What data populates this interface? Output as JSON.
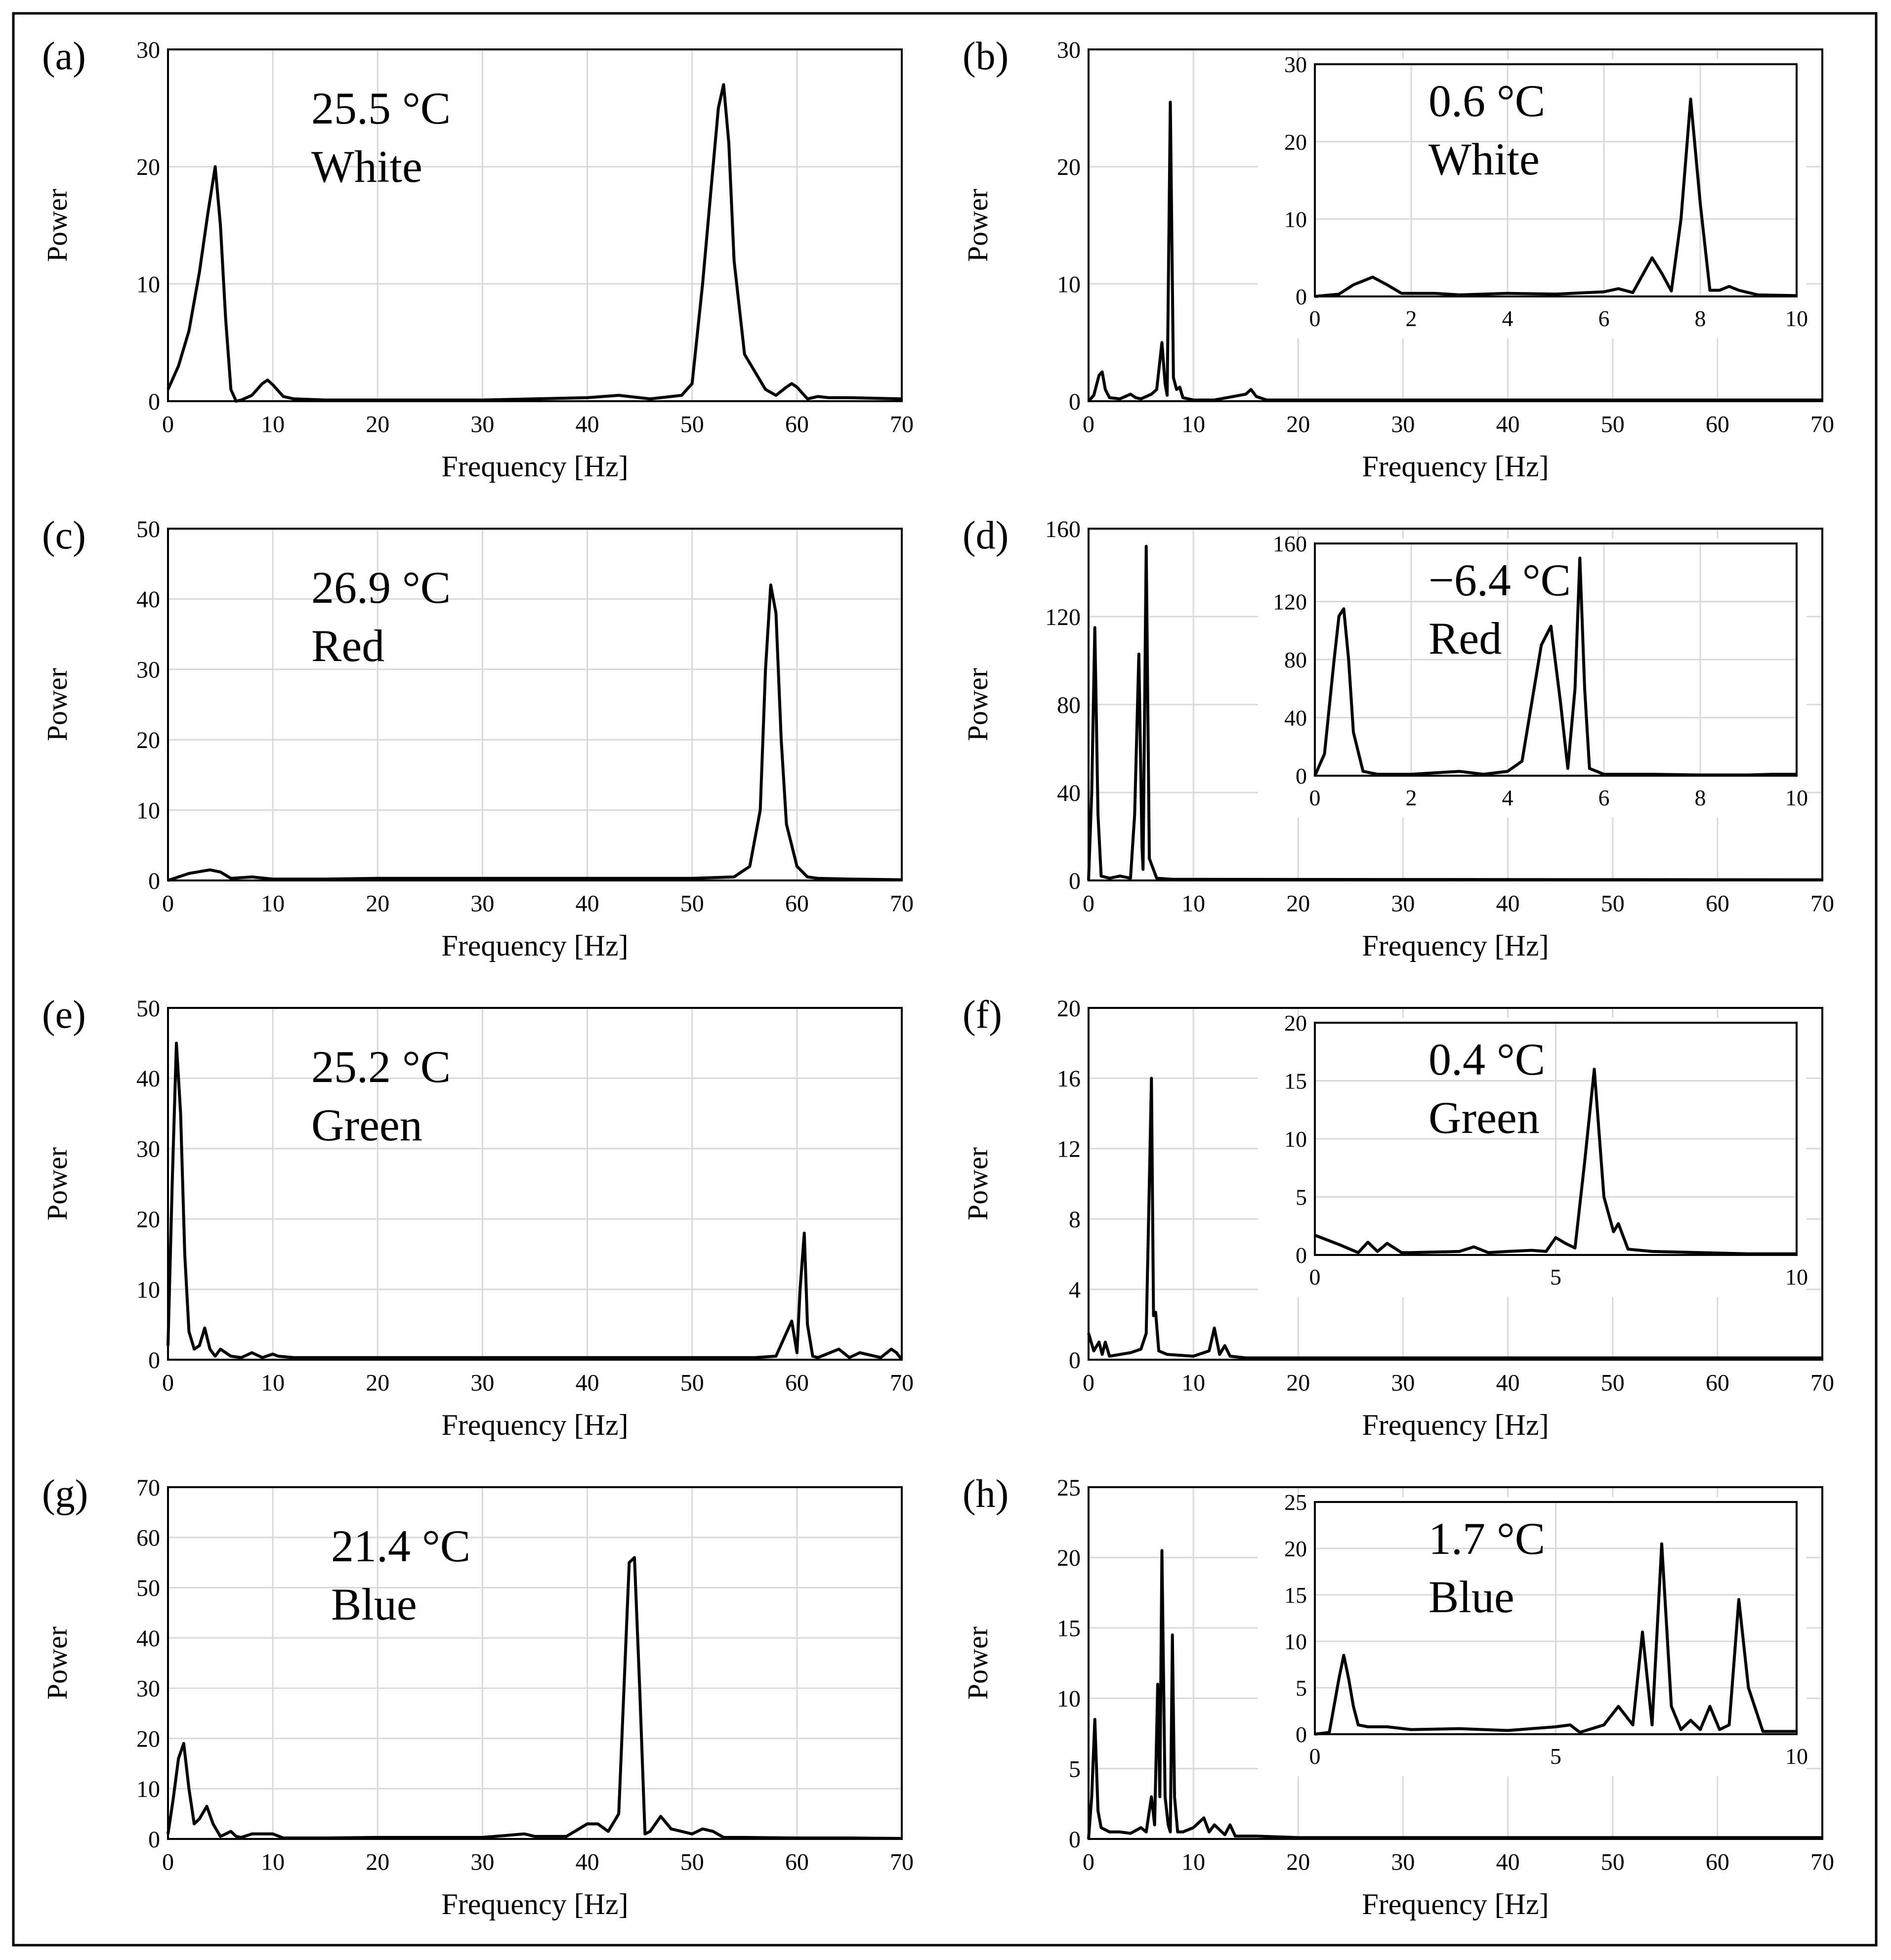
{
  "colors": {
    "line": "#000000",
    "grid": "#d9d9d9",
    "frame": "#000000",
    "background": "#ffffff"
  },
  "chart_data": [
    {
      "panel": "(a)",
      "type": "line",
      "xlabel": "Frequency [Hz]",
      "ylabel": "Power",
      "xlim": [
        0,
        70
      ],
      "ylim": [
        0,
        30
      ],
      "xticks": [
        0,
        10,
        20,
        30,
        40,
        50,
        60,
        70
      ],
      "yticks": [
        0,
        10,
        20,
        30
      ],
      "annotation": [
        "25.5 °C",
        "White"
      ],
      "x": [
        0,
        1,
        2,
        3,
        3.8,
        4.5,
        5,
        5.5,
        6,
        6.5,
        7,
        8,
        9,
        9.5,
        10,
        11,
        12,
        15,
        20,
        30,
        40,
        43,
        46,
        49,
        50,
        51,
        52,
        52.5,
        53,
        53.5,
        54,
        55,
        56,
        57,
        58,
        59,
        59.5,
        60,
        61,
        62,
        63,
        65,
        70
      ],
      "y": [
        1,
        3,
        6,
        11,
        16,
        20,
        15,
        7,
        1,
        0,
        0.1,
        0.5,
        1.5,
        1.8,
        1.4,
        0.4,
        0.2,
        0.1,
        0.1,
        0.1,
        0.3,
        0.5,
        0.2,
        0.5,
        1.5,
        10,
        20,
        25,
        27,
        22,
        12,
        4,
        2.5,
        1,
        0.5,
        1.2,
        1.5,
        1.2,
        0.2,
        0.4,
        0.3,
        0.3,
        0.2
      ]
    },
    {
      "panel": "(b)",
      "type": "line",
      "xlabel": "Frequency [Hz]",
      "ylabel": "Power",
      "xlim": [
        0,
        70
      ],
      "ylim": [
        0,
        30
      ],
      "xticks": [
        0,
        10,
        20,
        30,
        40,
        50,
        60,
        70
      ],
      "yticks": [
        0,
        10,
        20,
        30
      ],
      "annotation": [
        "0.6 °C",
        "White"
      ],
      "x": [
        0,
        0.5,
        1,
        1.3,
        1.6,
        2,
        3,
        4,
        4.5,
        5,
        6,
        6.5,
        7,
        7.3,
        7.5,
        7.8,
        8.1,
        8.4,
        8.7,
        9,
        10,
        12,
        15,
        15.5,
        16,
        17,
        20,
        70
      ],
      "y": [
        0,
        0.5,
        2.2,
        2.5,
        1,
        0.3,
        0.2,
        0.6,
        0.3,
        0.2,
        0.6,
        1,
        5,
        1.5,
        0.5,
        25.5,
        2,
        1,
        1.2,
        0.3,
        0.1,
        0.1,
        0.6,
        1,
        0.4,
        0.1,
        0.1,
        0.1
      ],
      "inset": {
        "xlim": [
          0,
          10
        ],
        "ylim": [
          0,
          30
        ],
        "xticks": [
          0,
          2,
          4,
          6,
          8,
          10
        ],
        "yticks": [
          0,
          10,
          20,
          30
        ],
        "x": [
          0,
          0.5,
          0.8,
          1.2,
          1.5,
          1.8,
          2.5,
          3,
          4,
          5,
          6,
          6.3,
          6.6,
          7,
          7.2,
          7.4,
          7.6,
          7.8,
          8,
          8.2,
          8.4,
          8.6,
          8.8,
          9.2,
          10
        ],
        "y": [
          0,
          0.3,
          1.5,
          2.5,
          1.5,
          0.4,
          0.4,
          0.2,
          0.4,
          0.3,
          0.6,
          1,
          0.5,
          5,
          3,
          0.7,
          10,
          25.5,
          12,
          0.8,
          0.8,
          1.3,
          0.8,
          0.2,
          0.1
        ]
      }
    },
    {
      "panel": "(c)",
      "type": "line",
      "xlabel": "Frequency [Hz]",
      "ylabel": "Power",
      "xlim": [
        0,
        70
      ],
      "ylim": [
        0,
        50
      ],
      "xticks": [
        0,
        10,
        20,
        30,
        40,
        50,
        60,
        70
      ],
      "yticks": [
        0,
        10,
        20,
        30,
        40,
        50
      ],
      "annotation": [
        "26.9 °C",
        "Red"
      ],
      "x": [
        0,
        2,
        4,
        5,
        6,
        8,
        10,
        15,
        20,
        25,
        30,
        35,
        40,
        45,
        50,
        54,
        55.5,
        56.5,
        57,
        57.5,
        58,
        58.5,
        59,
        60,
        61,
        62,
        65,
        70
      ],
      "y": [
        0,
        1,
        1.5,
        1.2,
        0.3,
        0.5,
        0.2,
        0.2,
        0.3,
        0.3,
        0.3,
        0.3,
        0.3,
        0.3,
        0.3,
        0.5,
        2,
        10,
        30,
        42,
        38,
        20,
        8,
        2,
        0.5,
        0.3,
        0.2,
        0.1
      ]
    },
    {
      "panel": "(d)",
      "type": "line",
      "xlabel": "Frequency [Hz]",
      "ylabel": "Power",
      "xlim": [
        0,
        70
      ],
      "ylim": [
        0,
        160
      ],
      "xticks": [
        0,
        10,
        20,
        30,
        40,
        50,
        60,
        70
      ],
      "yticks": [
        0,
        40,
        80,
        120,
        160
      ],
      "annotation": [
        "−6.4 °C",
        "Red"
      ],
      "x": [
        0,
        0.3,
        0.6,
        0.9,
        1.2,
        2,
        3,
        4,
        4.4,
        4.8,
        5.1,
        5.2,
        5.5,
        5.8,
        6.5,
        8,
        10,
        70
      ],
      "y": [
        0,
        40,
        115,
        30,
        2,
        1,
        2,
        1,
        30,
        103,
        15,
        5,
        152,
        10,
        1,
        0.5,
        0.5,
        0.3
      ],
      "inset": {
        "xlim": [
          0,
          10
        ],
        "ylim": [
          0,
          160
        ],
        "xticks": [
          0,
          2,
          4,
          6,
          8,
          10
        ],
        "yticks": [
          0,
          40,
          80,
          120,
          160
        ],
        "x": [
          0,
          0.2,
          0.4,
          0.5,
          0.6,
          0.7,
          0.8,
          1,
          1.3,
          2,
          3,
          3.5,
          4,
          4.3,
          4.5,
          4.7,
          4.9,
          5.1,
          5.25,
          5.4,
          5.5,
          5.6,
          5.7,
          6,
          7,
          8,
          9,
          9.5,
          10
        ],
        "y": [
          0,
          15,
          80,
          110,
          115,
          80,
          30,
          3,
          1,
          1,
          3,
          1,
          3,
          10,
          50,
          90,
          103,
          50,
          5,
          60,
          150,
          60,
          5,
          1,
          1,
          0.5,
          0.5,
          1,
          1
        ]
      }
    },
    {
      "panel": "(e)",
      "type": "line",
      "xlabel": "Frequency [Hz]",
      "ylabel": "Power",
      "xlim": [
        0,
        70
      ],
      "ylim": [
        0,
        50
      ],
      "xticks": [
        0,
        10,
        20,
        30,
        40,
        50,
        60,
        70
      ],
      "yticks": [
        0,
        10,
        20,
        30,
        40,
        50
      ],
      "annotation": [
        "25.2 °C",
        "Green"
      ],
      "x": [
        0,
        0.4,
        0.8,
        1.2,
        1.6,
        2,
        2.5,
        3,
        3.5,
        4,
        4.5,
        5,
        6,
        7,
        8,
        9,
        10,
        10.5,
        12,
        20,
        30,
        40,
        50,
        56,
        58,
        59.5,
        60,
        60.3,
        60.7,
        61,
        61.5,
        62,
        64,
        65,
        66,
        68,
        69,
        69.5,
        70
      ],
      "y": [
        2,
        25,
        45,
        35,
        15,
        4,
        1.5,
        2,
        4.5,
        1.5,
        0.5,
        1.5,
        0.5,
        0.3,
        1,
        0.3,
        0.8,
        0.5,
        0.3,
        0.3,
        0.3,
        0.3,
        0.3,
        0.3,
        0.5,
        5.5,
        1,
        10,
        18,
        5,
        0.5,
        0.3,
        1.5,
        0.3,
        1,
        0.3,
        1.5,
        1,
        0
      ]
    },
    {
      "panel": "(f)",
      "type": "line",
      "xlabel": "Frequency [Hz]",
      "ylabel": "Power",
      "xlim": [
        0,
        70
      ],
      "ylim": [
        0,
        20
      ],
      "xticks": [
        0,
        10,
        20,
        30,
        40,
        50,
        60,
        70
      ],
      "yticks": [
        0,
        4,
        8,
        12,
        16,
        20
      ],
      "annotation": [
        "0.4 °C",
        "Green"
      ],
      "x": [
        0,
        0.5,
        1,
        1.3,
        1.6,
        2,
        3,
        4,
        5,
        5.5,
        5.8,
        6,
        6.2,
        6.4,
        6.7,
        7.5,
        10,
        11.5,
        12,
        12.5,
        13,
        13.5,
        15,
        20,
        70
      ],
      "y": [
        1.5,
        0.5,
        1,
        0.3,
        1,
        0.2,
        0.3,
        0.4,
        0.6,
        1.5,
        10,
        16,
        2.5,
        2.7,
        0.5,
        0.3,
        0.2,
        0.5,
        1.8,
        0.3,
        0.8,
        0.2,
        0.1,
        0.1,
        0.1
      ],
      "inset": {
        "xlim": [
          0,
          10
        ],
        "ylim": [
          0,
          20
        ],
        "xticks": [
          0,
          5,
          10
        ],
        "yticks": [
          0,
          5,
          10,
          15,
          20
        ],
        "x": [
          0,
          0.5,
          0.9,
          1.1,
          1.3,
          1.5,
          1.8,
          2,
          3,
          3.3,
          3.6,
          4,
          4.5,
          4.8,
          5,
          5.2,
          5.4,
          5.6,
          5.8,
          6,
          6.2,
          6.3,
          6.5,
          7,
          8,
          9,
          10
        ],
        "y": [
          1.7,
          0.9,
          0.2,
          1.1,
          0.3,
          1,
          0.2,
          0.2,
          0.3,
          0.7,
          0.2,
          0.3,
          0.4,
          0.3,
          1.5,
          1,
          0.6,
          8,
          16,
          5,
          2,
          2.7,
          0.5,
          0.3,
          0.2,
          0.1,
          0.1
        ]
      }
    },
    {
      "panel": "(g)",
      "type": "line",
      "xlabel": "Frequency [Hz]",
      "ylabel": "Power",
      "xlim": [
        0,
        70
      ],
      "ylim": [
        0,
        70
      ],
      "xticks": [
        0,
        10,
        20,
        30,
        40,
        50,
        60,
        70
      ],
      "yticks": [
        0,
        10,
        20,
        30,
        40,
        50,
        60,
        70
      ],
      "annotation": [
        "21.4 °C",
        "Blue"
      ],
      "x": [
        0,
        0.5,
        1,
        1.5,
        2,
        2.5,
        3,
        3.7,
        4.3,
        5,
        6,
        6.5,
        7,
        8,
        9,
        10,
        11,
        15,
        20,
        25,
        30,
        34,
        35,
        38,
        40,
        41,
        42,
        43,
        43.5,
        44,
        44.5,
        45,
        45.5,
        46,
        47,
        48,
        50,
        51,
        52,
        53,
        55,
        60,
        65,
        70
      ],
      "y": [
        1,
        8,
        16,
        19,
        10,
        3,
        4,
        6.5,
        3,
        0.5,
        1.5,
        0.5,
        0.3,
        1,
        1,
        1,
        0.2,
        0.2,
        0.3,
        0.3,
        0.3,
        1,
        0.5,
        0.5,
        3,
        3,
        1.5,
        5,
        30,
        55,
        56,
        30,
        1,
        1.5,
        4.5,
        2,
        1,
        2,
        1.5,
        0.3,
        0.3,
        0.2,
        0.2,
        0.1
      ]
    },
    {
      "panel": "(h)",
      "type": "line",
      "xlabel": "Frequency [Hz]",
      "ylabel": "Power",
      "xlim": [
        0,
        70
      ],
      "ylim": [
        0,
        25
      ],
      "xticks": [
        0,
        10,
        20,
        30,
        40,
        50,
        60,
        70
      ],
      "yticks": [
        0,
        5,
        10,
        15,
        20,
        25
      ],
      "annotation": [
        "1.7 °C",
        "Blue"
      ],
      "x": [
        0,
        0.3,
        0.6,
        0.9,
        1.2,
        2,
        3,
        4,
        5,
        5.5,
        6,
        6.3,
        6.6,
        6.8,
        7,
        7.3,
        7.6,
        7.8,
        8,
        8.2,
        8.5,
        9,
        10,
        11,
        11.5,
        12,
        13,
        13.5,
        14,
        16,
        20,
        70
      ],
      "y": [
        0,
        3,
        8.5,
        2,
        0.8,
        0.5,
        0.5,
        0.4,
        0.8,
        0.5,
        3,
        1,
        11,
        3,
        20.5,
        3,
        1,
        0.5,
        14.5,
        3,
        0.5,
        0.5,
        0.8,
        1.5,
        0.5,
        1,
        0.3,
        1,
        0.2,
        0.2,
        0.1,
        0.1
      ],
      "inset": {
        "xlim": [
          0,
          10
        ],
        "ylim": [
          0,
          25
        ],
        "xticks": [
          0,
          5,
          10
        ],
        "yticks": [
          0,
          5,
          10,
          15,
          20,
          25
        ],
        "x": [
          0,
          0.3,
          0.5,
          0.6,
          0.7,
          0.8,
          0.9,
          1.1,
          1.5,
          2,
          3,
          4,
          5,
          5.3,
          5.5,
          6,
          6.3,
          6.6,
          6.8,
          7,
          7.2,
          7.4,
          7.6,
          7.8,
          8,
          8.2,
          8.4,
          8.6,
          8.8,
          9,
          9.3,
          10
        ],
        "y": [
          0,
          0.2,
          6,
          8.5,
          6,
          3,
          1,
          0.8,
          0.8,
          0.5,
          0.6,
          0.4,
          0.8,
          1,
          0.2,
          1,
          3,
          1,
          11,
          1,
          20.5,
          3,
          0.5,
          1.5,
          0.5,
          3,
          0.5,
          1,
          14.5,
          5,
          0.3,
          0.3
        ]
      }
    }
  ]
}
